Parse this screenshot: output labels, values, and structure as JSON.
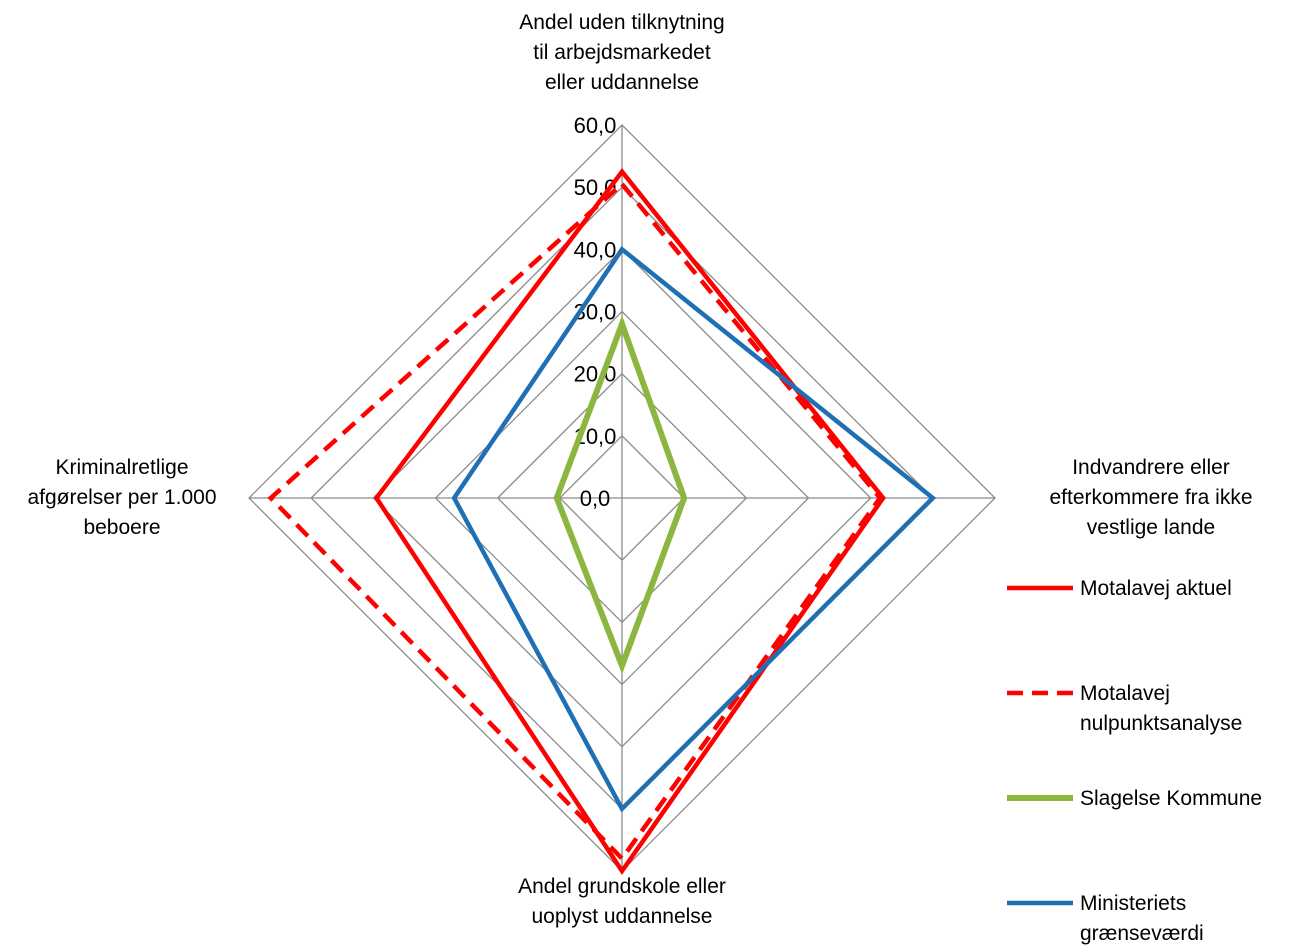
{
  "chart_data": {
    "type": "radar",
    "axes": [
      [
        "Andel uden tilknytning",
        "til arbejdsmarkedet",
        "eller uddannelse"
      ],
      [
        "Indvandrere eller",
        "efterkommere fra ikke",
        "vestlige lande"
      ],
      [
        "Andel grundskole eller",
        "uoplyst uddannelse"
      ],
      [
        "Kriminalretlige",
        "afgørelser per 1.000",
        "beboere"
      ]
    ],
    "rlim": [
      0,
      60
    ],
    "ticks": [
      "0,0",
      "10,0",
      "20,0",
      "30,0",
      "40,0",
      "50,0",
      "60,0"
    ],
    "grid": true,
    "legend_position": "right",
    "series": [
      {
        "name": "Motalavej aktuel",
        "values": [
          52.5,
          42,
          60,
          39.5
        ],
        "color": "#ff0000",
        "dash": "solid"
      },
      {
        "name": "Motalavej nulpunktsanalyse",
        "values": [
          50.5,
          41.5,
          58,
          56.5
        ],
        "color": "#ff0000",
        "dash": "dashed"
      },
      {
        "name": "Slagelse Kommune",
        "values": [
          28,
          10,
          27,
          10.5
        ],
        "color": "#8db640",
        "dash": "solid"
      },
      {
        "name": "Ministeriets grænseværdi",
        "values": [
          40,
          50,
          50,
          27
        ],
        "color": "#1f6fb5",
        "dash": "solid"
      }
    ],
    "legend_lines": [
      [
        "Motalavej aktuel"
      ],
      [
        "Motalavej",
        "nulpunktsanalyse"
      ],
      [
        "Slagelse Kommune"
      ],
      [
        "Ministeriets",
        "grænseværdi"
      ]
    ]
  }
}
